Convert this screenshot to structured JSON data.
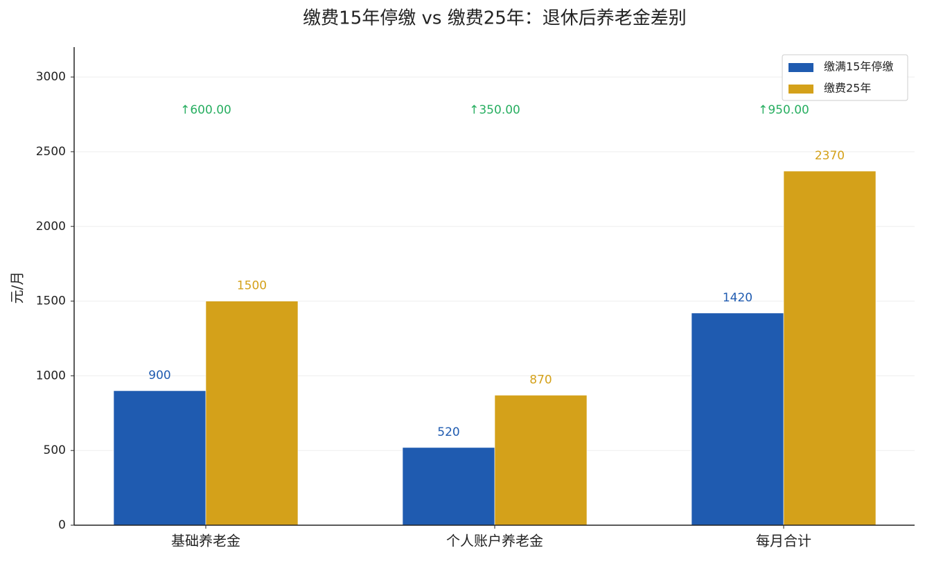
{
  "chart_data": {
    "type": "bar",
    "title": "缴费15年停缴 vs 缴费25年：退休后养老金差别",
    "y_label": "元/月",
    "categories": [
      "基础养老金",
      "个人账户养老金",
      "每月合计"
    ],
    "series": [
      {
        "name": "缴满15年停缴",
        "color": "#1f5bb0",
        "values": [
          900,
          520,
          1420
        ]
      },
      {
        "name": "缴费25年",
        "color": "#d4a11a",
        "values": [
          1500,
          870,
          2370
        ]
      }
    ],
    "annotations": [
      "↑600.00",
      "↑350.00",
      "↑950.00"
    ],
    "annotation_color": "#27ae60",
    "ylim": [
      0,
      3200
    ],
    "yticks": [
      0,
      500,
      1000,
      1500,
      2000,
      2500,
      3000
    ],
    "grid": true,
    "legend": "upper-right"
  }
}
